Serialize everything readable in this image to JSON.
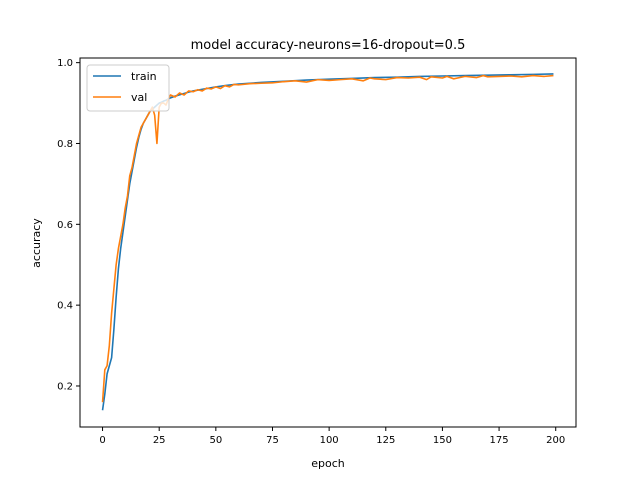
{
  "chart_data": {
    "type": "line",
    "title": "model accuracy-neurons=16-dropout=0.5",
    "xlabel": "epoch",
    "ylabel": "accuracy",
    "xlim": [
      -9.95,
      208.95
    ],
    "ylim": [
      0.0985,
      1.0115
    ],
    "xticks": [
      0,
      25,
      50,
      75,
      100,
      125,
      150,
      175,
      200
    ],
    "yticks": [
      0.2,
      0.4,
      0.6,
      0.8,
      1.0
    ],
    "ytick_labels": [
      "0.2",
      "0.4",
      "0.6",
      "0.8",
      "1.0"
    ],
    "grid": false,
    "legend_position": "upper-left",
    "series": [
      {
        "name": "train",
        "color": "#1f77b4",
        "x": [
          0,
          1,
          2,
          3,
          4,
          5,
          6,
          7,
          8,
          9,
          10,
          11,
          12,
          13,
          14,
          15,
          16,
          17,
          18,
          19,
          20,
          21,
          22,
          23,
          24,
          25,
          26,
          27,
          28,
          29,
          30,
          32,
          35,
          38,
          40,
          45,
          50,
          55,
          60,
          70,
          80,
          90,
          100,
          110,
          120,
          130,
          140,
          150,
          160,
          170,
          180,
          190,
          199
        ],
        "y": [
          0.14,
          0.18,
          0.23,
          0.25,
          0.27,
          0.34,
          0.42,
          0.49,
          0.54,
          0.58,
          0.62,
          0.66,
          0.7,
          0.73,
          0.76,
          0.79,
          0.815,
          0.835,
          0.85,
          0.86,
          0.87,
          0.88,
          0.885,
          0.89,
          0.895,
          0.9,
          0.902,
          0.905,
          0.907,
          0.91,
          0.913,
          0.917,
          0.922,
          0.927,
          0.93,
          0.935,
          0.94,
          0.944,
          0.947,
          0.951,
          0.954,
          0.957,
          0.959,
          0.961,
          0.963,
          0.964,
          0.966,
          0.967,
          0.968,
          0.969,
          0.97,
          0.971,
          0.972
        ]
      },
      {
        "name": "val",
        "color": "#ff7f0e",
        "x": [
          0,
          1,
          2,
          3,
          4,
          5,
          6,
          7,
          8,
          9,
          10,
          11,
          12,
          13,
          14,
          15,
          16,
          17,
          18,
          19,
          20,
          21,
          22,
          23,
          24,
          25,
          26,
          27,
          28,
          29,
          30,
          32,
          34,
          36,
          38,
          40,
          42,
          44,
          46,
          48,
          50,
          52,
          54,
          56,
          58,
          60,
          65,
          70,
          75,
          80,
          85,
          90,
          95,
          100,
          105,
          110,
          115,
          118,
          120,
          125,
          130,
          135,
          140,
          143,
          145,
          150,
          152,
          155,
          160,
          165,
          168,
          170,
          175,
          180,
          185,
          190,
          195,
          199
        ],
        "y": [
          0.16,
          0.24,
          0.25,
          0.3,
          0.38,
          0.44,
          0.5,
          0.54,
          0.57,
          0.6,
          0.64,
          0.67,
          0.72,
          0.74,
          0.77,
          0.8,
          0.82,
          0.84,
          0.85,
          0.86,
          0.87,
          0.88,
          0.89,
          0.87,
          0.8,
          0.89,
          0.9,
          0.9,
          0.895,
          0.91,
          0.92,
          0.915,
          0.925,
          0.92,
          0.93,
          0.928,
          0.933,
          0.93,
          0.937,
          0.935,
          0.94,
          0.936,
          0.943,
          0.94,
          0.946,
          0.945,
          0.948,
          0.949,
          0.95,
          0.953,
          0.955,
          0.952,
          0.958,
          0.956,
          0.958,
          0.96,
          0.955,
          0.962,
          0.96,
          0.958,
          0.963,
          0.962,
          0.964,
          0.958,
          0.965,
          0.962,
          0.966,
          0.96,
          0.966,
          0.963,
          0.968,
          0.965,
          0.966,
          0.967,
          0.965,
          0.968,
          0.966,
          0.968
        ]
      }
    ]
  }
}
